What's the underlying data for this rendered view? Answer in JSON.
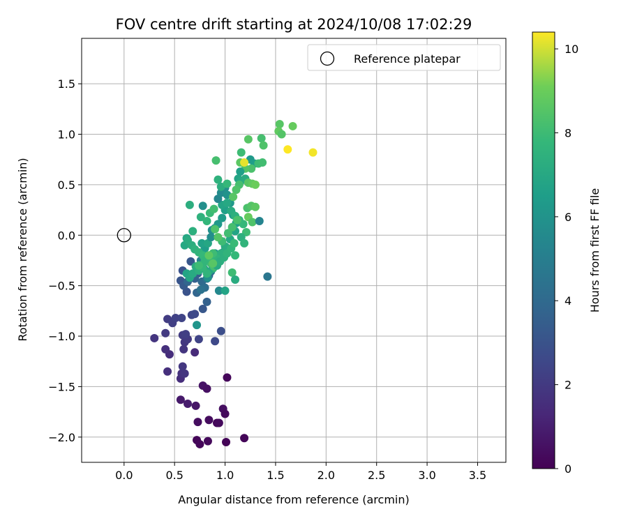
{
  "chart_data": {
    "type": "scatter",
    "title": "FOV centre drift starting at 2024/10/08 17:02:29",
    "xlabel": "Angular distance from reference (arcmin)",
    "ylabel": "Rotation from reference (arcmin)",
    "xlim": [
      -0.42,
      3.78
    ],
    "ylim": [
      -2.25,
      1.95
    ],
    "xticks": [
      "0.0",
      "0.5",
      "1.0",
      "1.5",
      "2.0",
      "2.5",
      "3.0",
      "3.5"
    ],
    "yticks": [
      "−2.0",
      "−1.5",
      "−1.0",
      "−0.5",
      "0.0",
      "0.5",
      "1.0",
      "1.5"
    ],
    "grid": true,
    "legend": {
      "position": "top-right",
      "label": "Reference platepar"
    },
    "reference_point": [
      0.0,
      0.0
    ],
    "colorbar": {
      "label": "Hours from first FF file",
      "range": [
        0,
        10.4
      ],
      "ticks": [
        "0",
        "2",
        "4",
        "6",
        "8",
        "10"
      ],
      "colormap": "viridis"
    },
    "points": [
      [
        0.72,
        -2.03,
        0.15
      ],
      [
        0.75,
        -2.07,
        0.2
      ],
      [
        0.83,
        -2.04,
        0.25
      ],
      [
        1.01,
        -2.05,
        0.1
      ],
      [
        1.19,
        -2.01,
        0.15
      ],
      [
        0.92,
        -1.86,
        0.2
      ],
      [
        0.94,
        -1.86,
        0.3
      ],
      [
        0.73,
        -1.85,
        0.4
      ],
      [
        0.84,
        -1.83,
        0.35
      ],
      [
        0.98,
        -1.72,
        0.45
      ],
      [
        1.0,
        -1.77,
        0.3
      ],
      [
        0.71,
        -1.69,
        0.7
      ],
      [
        0.56,
        -1.63,
        0.8
      ],
      [
        0.63,
        -1.67,
        0.9
      ],
      [
        0.78,
        -1.49,
        0.6
      ],
      [
        0.82,
        -1.52,
        0.5
      ],
      [
        1.02,
        -1.41,
        0.2
      ],
      [
        0.43,
        -1.35,
        1.6
      ],
      [
        0.56,
        -1.42,
        1.5
      ],
      [
        0.57,
        -1.37,
        1.7
      ],
      [
        0.6,
        -1.37,
        1.8
      ],
      [
        0.58,
        -1.3,
        1.9
      ],
      [
        0.45,
        -1.18,
        1.5
      ],
      [
        0.41,
        -1.13,
        1.6
      ],
      [
        0.59,
        -1.13,
        1.8
      ],
      [
        0.6,
        -1.06,
        1.9
      ],
      [
        0.63,
        -1.03,
        2.0
      ],
      [
        0.7,
        -1.16,
        1.4
      ],
      [
        0.58,
        -0.99,
        2.1
      ],
      [
        0.61,
        -0.98,
        2.2
      ],
      [
        0.3,
        -1.02,
        1.8
      ],
      [
        0.41,
        -0.97,
        2.0
      ],
      [
        0.43,
        -0.83,
        2.1
      ],
      [
        0.48,
        -0.87,
        2.2
      ],
      [
        0.51,
        -0.82,
        2.3
      ],
      [
        0.57,
        -0.82,
        2.4
      ],
      [
        0.67,
        -0.79,
        2.5
      ],
      [
        0.7,
        -0.78,
        2.6
      ],
      [
        0.74,
        -1.03,
        2.4
      ],
      [
        0.9,
        -1.05,
        2.6
      ],
      [
        0.96,
        -0.95,
        2.8
      ],
      [
        0.78,
        -0.73,
        3.2
      ],
      [
        0.82,
        -0.66,
        3.6
      ],
      [
        0.62,
        -0.56,
        3.0
      ],
      [
        0.56,
        -0.45,
        3.1
      ],
      [
        0.59,
        -0.5,
        3.3
      ],
      [
        0.63,
        -0.46,
        3.8
      ],
      [
        0.58,
        -0.35,
        3.0
      ],
      [
        0.66,
        -0.26,
        3.2
      ],
      [
        0.73,
        -0.38,
        3.4
      ],
      [
        0.7,
        -0.43,
        3.6
      ],
      [
        0.72,
        -0.57,
        3.8
      ],
      [
        0.77,
        -0.46,
        4.0
      ],
      [
        0.8,
        -0.52,
        4.2
      ],
      [
        0.76,
        -0.54,
        4.4
      ],
      [
        0.82,
        -0.43,
        4.6
      ],
      [
        0.86,
        -0.36,
        4.8
      ],
      [
        0.84,
        -0.4,
        3.5
      ],
      [
        0.92,
        -0.3,
        3.9
      ],
      [
        0.87,
        -0.29,
        4.3
      ],
      [
        0.95,
        -0.21,
        4.7
      ],
      [
        0.98,
        -0.17,
        5.1
      ],
      [
        1.01,
        -0.12,
        5.5
      ],
      [
        0.79,
        -0.33,
        5.0
      ],
      [
        0.76,
        -0.25,
        5.2
      ],
      [
        0.94,
        -0.55,
        5.5
      ],
      [
        0.72,
        -0.89,
        6.1
      ],
      [
        0.83,
        -0.42,
        5.9
      ],
      [
        0.88,
        -0.27,
        6.0
      ],
      [
        0.9,
        -0.18,
        6.3
      ],
      [
        0.8,
        -0.13,
        6.5
      ],
      [
        0.77,
        -0.08,
        6.7
      ],
      [
        0.83,
        -0.08,
        6.9
      ],
      [
        0.86,
        -0.02,
        5.7
      ],
      [
        0.87,
        0.05,
        5.8
      ],
      [
        0.9,
        0.07,
        6.0
      ],
      [
        0.93,
        0.11,
        6.2
      ],
      [
        0.97,
        0.17,
        6.4
      ],
      [
        1.0,
        0.25,
        6.6
      ],
      [
        0.97,
        0.3,
        6.8
      ],
      [
        0.93,
        0.36,
        5.4
      ],
      [
        0.96,
        0.42,
        5.6
      ],
      [
        1.0,
        0.47,
        5.8
      ],
      [
        1.02,
        0.4,
        6.0
      ],
      [
        1.05,
        0.32,
        6.2
      ],
      [
        1.08,
        0.2,
        6.4
      ],
      [
        1.11,
        0.12,
        6.6
      ],
      [
        1.1,
        0.04,
        6.8
      ],
      [
        1.05,
        -0.04,
        7.0
      ],
      [
        1.0,
        -0.11,
        7.2
      ],
      [
        0.96,
        -0.18,
        7.4
      ],
      [
        0.92,
        -0.23,
        7.6
      ],
      [
        0.88,
        -0.33,
        7.8
      ],
      [
        0.84,
        -0.36,
        7.0
      ],
      [
        0.78,
        0.29,
        5.8
      ],
      [
        0.65,
        0.3,
        7.3
      ],
      [
        0.76,
        0.18,
        7.5
      ],
      [
        0.82,
        0.14,
        7.7
      ],
      [
        0.85,
        0.22,
        7.9
      ],
      [
        0.89,
        0.26,
        8.1
      ],
      [
        0.68,
        0.04,
        7.4
      ],
      [
        0.62,
        -0.03,
        6.9
      ],
      [
        0.6,
        -0.1,
        7.0
      ],
      [
        0.63,
        -0.05,
        7.2
      ],
      [
        0.67,
        -0.1,
        7.3
      ],
      [
        0.7,
        -0.14,
        7.5
      ],
      [
        0.74,
        -0.17,
        7.6
      ],
      [
        0.78,
        -0.2,
        7.8
      ],
      [
        0.82,
        -0.24,
        7.9
      ],
      [
        0.86,
        -0.28,
        8.1
      ],
      [
        0.89,
        -0.31,
        8.2
      ],
      [
        0.92,
        -0.3,
        7.1
      ],
      [
        0.95,
        -0.26,
        7.3
      ],
      [
        0.99,
        -0.22,
        7.4
      ],
      [
        1.02,
        -0.18,
        7.6
      ],
      [
        1.06,
        -0.13,
        7.7
      ],
      [
        1.09,
        -0.08,
        7.9
      ],
      [
        0.62,
        -0.38,
        6.8
      ],
      [
        0.65,
        -0.42,
        6.9
      ],
      [
        0.68,
        -0.38,
        7.1
      ],
      [
        0.71,
        -0.31,
        7.2
      ],
      [
        0.74,
        -0.35,
        7.4
      ],
      [
        0.78,
        -0.29,
        7.5
      ],
      [
        0.8,
        -0.25,
        7.7
      ],
      [
        0.85,
        -0.22,
        7.8
      ],
      [
        0.88,
        -0.18,
        8.0
      ],
      [
        1.25,
        0.75,
        6.3
      ],
      [
        1.29,
        0.71,
        6.5
      ],
      [
        1.33,
        0.71,
        8.0
      ],
      [
        1.37,
        0.72,
        8.1
      ],
      [
        1.26,
        0.66,
        8.3
      ],
      [
        1.2,
        0.66,
        8.5
      ],
      [
        1.15,
        0.72,
        8.7
      ],
      [
        1.19,
        0.72,
        10.2
      ],
      [
        1.15,
        0.63,
        6.6
      ],
      [
        1.13,
        0.56,
        6.8
      ],
      [
        1.16,
        0.54,
        7.0
      ],
      [
        1.2,
        0.56,
        7.2
      ],
      [
        1.14,
        0.5,
        8.2
      ],
      [
        1.11,
        0.45,
        8.4
      ],
      [
        1.08,
        0.38,
        8.6
      ],
      [
        1.02,
        0.32,
        7.0
      ],
      [
        1.06,
        0.24,
        7.2
      ],
      [
        1.1,
        0.19,
        7.4
      ],
      [
        1.14,
        0.15,
        7.6
      ],
      [
        1.18,
        0.11,
        7.8
      ],
      [
        1.21,
        0.03,
        8.0
      ],
      [
        1.16,
        -0.02,
        7.4
      ],
      [
        1.19,
        -0.08,
        7.6
      ],
      [
        1.1,
        -0.2,
        7.8
      ],
      [
        1.07,
        -0.37,
        8.0
      ],
      [
        1.1,
        -0.44,
        7.2
      ],
      [
        1.0,
        -0.55,
        6.8
      ],
      [
        1.22,
        0.27,
        8.3
      ],
      [
        1.26,
        0.29,
        8.5
      ],
      [
        1.3,
        0.28,
        8.7
      ],
      [
        1.23,
        0.18,
        8.9
      ],
      [
        1.27,
        0.13,
        8.4
      ],
      [
        1.23,
        0.52,
        8.6
      ],
      [
        1.27,
        0.51,
        8.8
      ],
      [
        1.3,
        0.5,
        9.0
      ],
      [
        1.16,
        0.82,
        8.0
      ],
      [
        1.23,
        0.95,
        8.6
      ],
      [
        1.36,
        0.96,
        8.2
      ],
      [
        1.38,
        0.89,
        8.4
      ],
      [
        1.54,
        1.1,
        8.6
      ],
      [
        1.53,
        1.03,
        8.8
      ],
      [
        1.56,
        1.0,
        8.5
      ],
      [
        1.67,
        1.08,
        8.9
      ],
      [
        1.62,
        0.85,
        10.4
      ],
      [
        1.87,
        0.82,
        10.3
      ],
      [
        0.91,
        0.74,
        8.2
      ],
      [
        0.93,
        0.55,
        7.5
      ],
      [
        0.96,
        0.48,
        7.3
      ],
      [
        1.02,
        0.51,
        7.8
      ],
      [
        1.34,
        0.14,
        5.3
      ],
      [
        1.42,
        -0.41,
        4.6
      ],
      [
        0.82,
        -0.38,
        7.6
      ],
      [
        0.78,
        -0.32,
        7.7
      ],
      [
        0.97,
        -0.06,
        8.0
      ],
      [
        1.03,
        0.02,
        8.1
      ],
      [
        1.07,
        0.08,
        8.2
      ],
      [
        1.12,
        0.15,
        8.3
      ],
      [
        0.9,
        0.06,
        8.4
      ],
      [
        0.93,
        -0.02,
        8.5
      ],
      [
        0.88,
        -0.28,
        8.6
      ],
      [
        0.84,
        -0.2,
        8.7
      ],
      [
        0.74,
        -0.3,
        8.0
      ]
    ]
  }
}
